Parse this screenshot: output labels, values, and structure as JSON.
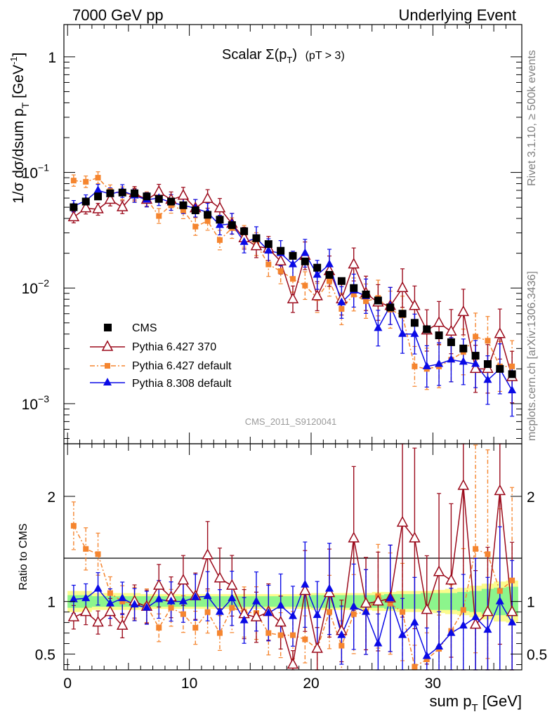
{
  "header": {
    "left": "7000 GeV pp",
    "right": "Underlying Event"
  },
  "side_labels": {
    "rivet": "Rivet 3.1.10, ≥ 500k events",
    "mcplots": "mcplots.cern.ch [arXiv:1306.3436]"
  },
  "watermark": "CMS_2011_S9120041",
  "colors": {
    "cms": "#000000",
    "py6_370": "#9b0a1b",
    "py6_default": "#f5852f",
    "py8": "#0a0ae6",
    "band_yellow": "#fbfb8c",
    "band_green": "#8cf58c"
  },
  "chart_data": [
    {
      "type": "scatter",
      "title": "Scalar Σ(pT) (pT > 3)",
      "title_parts": {
        "main": "Scalar ",
        "sigma": "Σ(p",
        "sub": "T",
        "close": ")",
        "cut": "(pT >  3)"
      },
      "ylabel_parts": {
        "pre": "1/σ dσ/dsum p",
        "sub": "T",
        "post": " [GeV",
        "sup": "-1",
        "end": "]"
      },
      "y_scale": "log",
      "ylim": [
        0.00045,
        1.9
      ],
      "y_ticks": [
        {
          "label_base": "1",
          "label_exp": "",
          "value": 1
        },
        {
          "label_base": "10",
          "label_exp": "−1",
          "value": 0.1
        },
        {
          "label_base": "10",
          "label_exp": "−2",
          "value": 0.01
        },
        {
          "label_base": "10",
          "label_exp": "−3",
          "value": 0.001
        }
      ],
      "x": [
        0.5,
        1.5,
        2.5,
        3.5,
        4.5,
        5.5,
        6.5,
        7.5,
        8.5,
        9.5,
        10.5,
        11.5,
        12.5,
        13.5,
        14.5,
        15.5,
        16.5,
        17.5,
        18.5,
        19.5,
        20.5,
        21.5,
        22.5,
        23.5,
        24.5,
        25.5,
        26.5,
        27.5,
        28.5,
        29.5,
        30.5,
        31.5,
        32.5,
        33.5,
        34.5,
        35.5,
        36.5
      ],
      "series": [
        {
          "name": "CMS",
          "marker": "square",
          "y": [
            0.05,
            0.056,
            0.062,
            0.066,
            0.067,
            0.066,
            0.062,
            0.059,
            0.056,
            0.052,
            0.047,
            0.043,
            0.039,
            0.035,
            0.031,
            0.027,
            0.024,
            0.021,
            0.019,
            0.017,
            0.015,
            0.013,
            0.0115,
            0.01,
            0.0088,
            0.0078,
            0.0068,
            0.006,
            0.005,
            0.0044,
            0.0039,
            0.0034,
            0.003,
            0.0026,
            0.0022,
            0.002,
            0.0018
          ]
        },
        {
          "name": "Pythia 6.427 370",
          "marker": "triangle-open",
          "y": [
            0.041,
            0.049,
            0.048,
            0.058,
            0.05,
            0.066,
            0.058,
            0.068,
            0.058,
            0.063,
            0.049,
            0.059,
            0.049,
            0.036,
            0.027,
            0.023,
            0.022,
            0.017,
            0.008,
            0.019,
            0.0085,
            0.014,
            0.008,
            0.016,
            0.009,
            0.0075,
            0.007,
            0.01,
            0.007,
            0.0043,
            0.005,
            0.0042,
            0.0062,
            0.002,
            0.002,
            0.004,
            0.0017
          ]
        },
        {
          "name": "Pythia 6.427 default",
          "marker": "square-small",
          "y": [
            0.085,
            0.083,
            0.09,
            0.069,
            0.066,
            0.064,
            0.059,
            0.042,
            0.052,
            0.047,
            0.034,
            0.038,
            0.026,
            0.033,
            0.028,
            0.024,
            0.016,
            0.014,
            0.012,
            0.0105,
            0.0082,
            0.0115,
            0.0066,
            0.0088,
            0.0077,
            0.0082,
            0.0065,
            0.0058,
            0.0021,
            0.002,
            0.0021,
            0.0024,
            0.0028,
            0.0038,
            0.0035,
            0.0021,
            0.0021
          ]
        },
        {
          "name": "Pythia 8.308 default",
          "marker": "triangle-filled",
          "y": [
            0.051,
            0.057,
            0.07,
            0.065,
            0.069,
            0.063,
            0.058,
            0.06,
            0.055,
            0.052,
            0.049,
            0.045,
            0.035,
            0.036,
            0.025,
            0.027,
            0.021,
            0.02,
            0.016,
            0.02,
            0.013,
            0.016,
            0.0075,
            0.0095,
            0.0085,
            0.0045,
            0.007,
            0.004,
            0.004,
            0.0021,
            0.0022,
            0.0024,
            0.0023,
            0.0022,
            0.0016,
            0.002,
            0.0013
          ]
        }
      ],
      "legend_placement": "middle-left"
    },
    {
      "type": "scatter",
      "ylabel": "Ratio to CMS",
      "ylim": [
        0.35,
        2.5
      ],
      "y_ticks": [
        "0.5",
        "1",
        "2"
      ],
      "xlim": [
        -0.3,
        37.3
      ],
      "x_ticks": [
        "0",
        "10",
        "20",
        "30"
      ],
      "xlabel_parts": {
        "pre": "sum p",
        "sub": "T",
        "post": " [GeV]"
      },
      "x": [
        0.5,
        1.5,
        2.5,
        3.5,
        4.5,
        5.5,
        6.5,
        7.5,
        8.5,
        9.5,
        10.5,
        11.5,
        12.5,
        13.5,
        14.5,
        15.5,
        16.5,
        17.5,
        18.5,
        19.5,
        20.5,
        21.5,
        22.5,
        23.5,
        24.5,
        25.5,
        26.5,
        27.5,
        28.5,
        29.5,
        30.5,
        31.5,
        32.5,
        33.5,
        34.5,
        35.5,
        36.5
      ],
      "series": [
        {
          "name": "Pythia 6.427 370",
          "y": [
            0.85,
            0.9,
            0.8,
            0.9,
            0.77,
            1.0,
            0.95,
            1.15,
            1.04,
            1.2,
            1.05,
            1.44,
            1.22,
            1.15,
            0.88,
            0.85,
            0.9,
            0.8,
            0.4,
            1.1,
            0.55,
            1.08,
            0.72,
            1.6,
            0.98,
            1.0,
            1.03,
            1.75,
            1.6,
            0.92,
            1.28,
            1.2,
            2.1,
            0.78,
            0.9,
            2.05,
            0.9
          ]
        },
        {
          "name": "Pythia 6.427 default",
          "y": [
            1.72,
            1.5,
            1.45,
            1.08,
            1.0,
            0.98,
            0.96,
            0.75,
            0.94,
            0.88,
            0.75,
            0.9,
            0.7,
            0.94,
            0.9,
            0.89,
            0.7,
            0.68,
            0.68,
            0.64,
            0.55,
            0.9,
            0.58,
            0.88,
            0.9,
            1.05,
            0.98,
            0.9,
            0.38,
            0.45,
            0.55,
            0.72,
            0.92,
            1.5,
            1.45,
            1.1,
            1.2
          ]
        },
        {
          "name": "Pythia 8.308 default",
          "y": [
            1.02,
            1.03,
            1.12,
            0.98,
            1.03,
            0.97,
            0.94,
            1.02,
            1.0,
            1.0,
            1.04,
            1.05,
            0.9,
            1.03,
            0.82,
            1.0,
            0.89,
            0.96,
            0.86,
            1.16,
            0.87,
            1.12,
            0.68,
            0.95,
            0.9,
            0.6,
            1.03,
            0.68,
            0.8,
            0.48,
            0.57,
            0.7,
            0.77,
            0.85,
            0.73,
            1.0,
            0.8
          ]
        }
      ],
      "band_green_halfwidth": [
        0.06,
        0.06,
        0.05,
        0.05,
        0.05,
        0.05,
        0.05,
        0.05,
        0.05,
        0.05,
        0.05,
        0.05,
        0.05,
        0.05,
        0.05,
        0.05,
        0.05,
        0.05,
        0.05,
        0.05,
        0.06,
        0.06,
        0.06,
        0.06,
        0.06,
        0.06,
        0.07,
        0.07,
        0.07,
        0.08,
        0.08,
        0.08,
        0.09,
        0.1,
        0.12,
        0.13,
        0.14
      ],
      "band_yellow_halfwidth": [
        0.1,
        0.1,
        0.08,
        0.08,
        0.08,
        0.08,
        0.07,
        0.07,
        0.07,
        0.07,
        0.07,
        0.07,
        0.07,
        0.07,
        0.07,
        0.07,
        0.07,
        0.07,
        0.07,
        0.07,
        0.08,
        0.08,
        0.08,
        0.08,
        0.08,
        0.09,
        0.09,
        0.1,
        0.1,
        0.1,
        0.11,
        0.12,
        0.13,
        0.15,
        0.17,
        0.19,
        0.2
      ]
    }
  ]
}
